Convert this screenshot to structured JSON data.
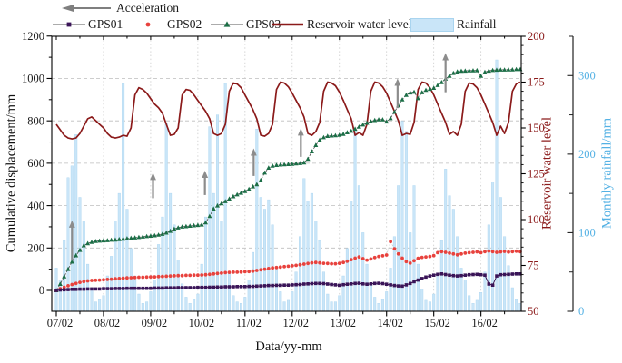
{
  "figure_type": "time-series monitoring figure (landslide displacement, reservoir level, rainfall)",
  "legend": {
    "acceleration": {
      "label": "Acceleration",
      "marker": "left-arrow",
      "color": "#7f7f7f"
    },
    "entries": [
      {
        "id": "gps01",
        "label": "GPS01",
        "marker": "line-square",
        "color": "#3a1458"
      },
      {
        "id": "gps02",
        "label": "GPS02",
        "marker": "dot",
        "color": "#e8423d"
      },
      {
        "id": "gps03",
        "label": "GPS03",
        "marker": "line-triangle",
        "color": "#1b6e46"
      },
      {
        "id": "reservoir",
        "label": "Reservoir water level",
        "marker": "line",
        "color": "#8b1a1a"
      },
      {
        "id": "rainfall",
        "label": "Rainfall",
        "marker": "patch",
        "color": "#c9e5f8"
      }
    ]
  },
  "axes": {
    "x": {
      "title": "Data/yy-mm",
      "tick_labels": [
        "07/02",
        "08/02",
        "09/02",
        "10/02",
        "11/02",
        "12/02",
        "13/02",
        "14/02",
        "15/02",
        "16/02"
      ]
    },
    "y_left": {
      "title": "Cumulative displacement/mm",
      "ticks": [
        0,
        200,
        400,
        600,
        800,
        1000,
        1200
      ],
      "range": [
        -100,
        1200
      ],
      "color": "#1a1a1a"
    },
    "y_reservoir": {
      "title": "Reservoir water level",
      "ticks": [
        50,
        75,
        100,
        125,
        150,
        175,
        200
      ],
      "range": [
        50,
        200
      ],
      "color": "#8b1a1a"
    },
    "y_rainfall": {
      "title": "Monthly rainfall/mm",
      "ticks": [
        0,
        100,
        200,
        300
      ],
      "range": [
        0,
        350
      ],
      "color": "#54b1e4"
    }
  },
  "chart_data": {
    "type": "composite",
    "time": {
      "start": "2007-02",
      "end": "2016-12",
      "step": "month",
      "n_points": 119
    },
    "grid": {
      "horizontal_at": [
        200,
        400,
        600,
        800,
        1000
      ],
      "vertical_at_year_ticks": true
    },
    "series": [
      {
        "name": "GPS01",
        "type": "line+square",
        "axis": "displacement",
        "color": "#3a1458",
        "values": [
          0,
          2,
          3,
          4,
          5,
          5,
          6,
          6,
          7,
          7,
          7,
          7,
          8,
          8,
          8,
          9,
          9,
          9,
          10,
          10,
          10,
          10,
          10,
          10,
          10,
          11,
          11,
          11,
          12,
          12,
          12,
          13,
          13,
          13,
          13,
          13,
          14,
          14,
          14,
          15,
          15,
          16,
          16,
          17,
          17,
          17,
          18,
          18,
          18,
          19,
          19,
          20,
          21,
          22,
          23,
          23,
          24,
          24,
          25,
          25,
          26,
          27,
          28,
          30,
          31,
          32,
          33,
          33,
          32,
          30,
          28,
          26,
          24,
          27,
          29,
          31,
          33,
          34,
          31,
          29,
          31,
          33,
          34,
          32,
          29,
          26,
          23,
          21,
          20,
          26,
          33,
          41,
          49,
          56,
          63,
          68,
          72,
          76,
          78,
          75,
          72,
          70,
          68,
          70,
          72,
          74,
          75,
          76,
          74,
          72,
          30,
          25,
          68,
          74,
          75,
          76,
          77,
          78,
          78
        ]
      },
      {
        "name": "GPS02",
        "type": "scatter",
        "axis": "displacement",
        "color": "#e8423d",
        "values": [
          0,
          8,
          15,
          22,
          28,
          33,
          38,
          42,
          45,
          47,
          48,
          49,
          50,
          52,
          53,
          55,
          56,
          58,
          59,
          60,
          61,
          62,
          62,
          63,
          64,
          64,
          65,
          66,
          67,
          68,
          69,
          70,
          70,
          71,
          71,
          72,
          72,
          73,
          74,
          76,
          78,
          80,
          82,
          84,
          85,
          86,
          86,
          87,
          88,
          89,
          91,
          94,
          97,
          100,
          103,
          106,
          108,
          110,
          112,
          114,
          116,
          118,
          121,
          124,
          127,
          130,
          132,
          130,
          128,
          127,
          126,
          126,
          128,
          132,
          138,
          145,
          152,
          158,
          150,
          143,
          148,
          155,
          160,
          163,
          167,
          230,
          196,
          172,
          152,
          136,
          129,
          140,
          151,
          156,
          158,
          160,
          164,
          178,
          183,
          180,
          176,
          172,
          168,
          172,
          176,
          178,
          180,
          182,
          178,
          183,
          186,
          183,
          180,
          182,
          184,
          181,
          183,
          185,
          183
        ]
      },
      {
        "name": "GPS03",
        "type": "line+triangle",
        "axis": "displacement",
        "color": "#1b6e46",
        "values": [
          0,
          30,
          65,
          100,
          135,
          165,
          190,
          212,
          222,
          228,
          232,
          234,
          235,
          236,
          238,
          239,
          241,
          243,
          245,
          247,
          249,
          251,
          253,
          255,
          257,
          259,
          262,
          266,
          272,
          280,
          290,
          296,
          300,
          302,
          304,
          306,
          308,
          310,
          320,
          350,
          385,
          400,
          410,
          420,
          432,
          443,
          452,
          460,
          468,
          478,
          490,
          500,
          520,
          555,
          578,
          588,
          591,
          593,
          594,
          595,
          596,
          598,
          600,
          603,
          620,
          655,
          685,
          710,
          722,
          728,
          730,
          731,
          733,
          738,
          745,
          752,
          762,
          772,
          782,
          790,
          797,
          803,
          806,
          806,
          796,
          812,
          842,
          872,
          900,
          922,
          933,
          936,
          906,
          934,
          945,
          950,
          955,
          968,
          982,
          998,
          1012,
          1025,
          1032,
          1035,
          1036,
          1037,
          1037,
          1038,
          1012,
          1030,
          1036,
          1039,
          1040,
          1041,
          1041,
          1042,
          1042,
          1043,
          1043
        ]
      },
      {
        "name": "Reservoir water level",
        "type": "line",
        "axis": "reservoir",
        "color": "#8b1a1a",
        "values": [
          152,
          149,
          146,
          144.5,
          144,
          144.5,
          147,
          151,
          155,
          156,
          154,
          152,
          150,
          147,
          145,
          144.5,
          145,
          146,
          145.5,
          150,
          168,
          172,
          171,
          169,
          166,
          163,
          161,
          158,
          152,
          146,
          146.5,
          150,
          168,
          171,
          170.5,
          168,
          165,
          162,
          159,
          155,
          147,
          146,
          147,
          152,
          170,
          174.5,
          174,
          172,
          168,
          164,
          160,
          155,
          146,
          145.5,
          147,
          152,
          171,
          175,
          174.5,
          172.5,
          169,
          165,
          161,
          156,
          147,
          146,
          148,
          153,
          170,
          175,
          174.5,
          173,
          169.5,
          165,
          160,
          155,
          146,
          147.5,
          146,
          152,
          170,
          175,
          174.5,
          172.5,
          169,
          164,
          159,
          154,
          146,
          147,
          146.5,
          153,
          171,
          175,
          174.5,
          172,
          168,
          163,
          158,
          153,
          146.5,
          148,
          146,
          152,
          170,
          174.5,
          174,
          172,
          168,
          163,
          158,
          153,
          146,
          151,
          147,
          153,
          170,
          174,
          175
        ]
      },
      {
        "name": "Rainfall",
        "type": "bar",
        "axis": "rainfall",
        "color": "#c9e5f8",
        "values": [
          55,
          40,
          90,
          170,
          185,
          225,
          145,
          115,
          60,
          30,
          12,
          15,
          20,
          45,
          70,
          115,
          150,
          290,
          130,
          80,
          45,
          22,
          10,
          12,
          25,
          40,
          85,
          120,
          240,
          150,
          110,
          65,
          35,
          18,
          10,
          15,
          22,
          60,
          120,
          235,
          150,
          250,
          115,
          290,
          50,
          20,
          12,
          10,
          18,
          40,
          75,
          232,
          145,
          130,
          142,
          110,
          55,
          25,
          12,
          14,
          25,
          50,
          95,
          169,
          140,
          150,
          115,
          90,
          50,
          22,
          12,
          12,
          20,
          45,
          80,
          140,
          230,
          160,
          100,
          60,
          35,
          18,
          10,
          15,
          25,
          55,
          95,
          160,
          242,
          229,
          100,
          160,
          60,
          28,
          14,
          12,
          22,
          48,
          90,
          181,
          147,
          130,
          95,
          55,
          40,
          20,
          10,
          14,
          24,
          50,
          110,
          165,
          320,
          145,
          95,
          58,
          30,
          15,
          10
        ]
      }
    ],
    "acceleration_arrows": [
      {
        "month": 4.0,
        "from_mm": 140,
        "to_mm": 330
      },
      {
        "month": 24.6,
        "from_mm": 435,
        "to_mm": 555
      },
      {
        "month": 37.8,
        "from_mm": 450,
        "to_mm": 565
      },
      {
        "month": 50.2,
        "from_mm": 540,
        "to_mm": 670
      },
      {
        "month": 62.2,
        "from_mm": 630,
        "to_mm": 765
      },
      {
        "month": 86.8,
        "from_mm": 860,
        "to_mm": 1000
      },
      {
        "month": 99.0,
        "from_mm": 935,
        "to_mm": 1120
      }
    ],
    "year_tick_months": [
      0,
      12,
      24,
      36,
      48,
      60,
      72,
      84,
      96,
      108
    ]
  }
}
